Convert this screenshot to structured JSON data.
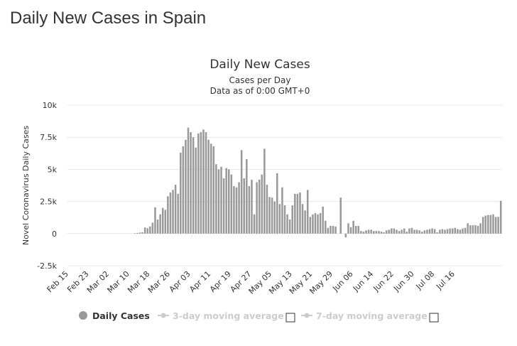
{
  "page": {
    "title": "Daily New Cases in Spain"
  },
  "chart_data": {
    "type": "bar",
    "title": "Daily New Cases",
    "subtitle": "Cases per Day",
    "subtitle2": "Data as of 0:00 GMT+0",
    "ylabel": "Novel Coronavirus Daily Cases",
    "xlabel": "",
    "ylim": [
      -2500,
      10000
    ],
    "yticks": [
      -2500,
      0,
      2500,
      5000,
      7500,
      10000
    ],
    "ytick_labels": [
      "-2.5k",
      "0",
      "2.5k",
      "5k",
      "7.5k",
      "10k"
    ],
    "x_start": "Feb 15",
    "xtick_labels": [
      "Feb 15",
      "Feb 23",
      "Mar 02",
      "Mar 10",
      "Mar 18",
      "Mar 26",
      "Apr 03",
      "Apr 11",
      "Apr 19",
      "Apr 27",
      "May 05",
      "May 13",
      "May 21",
      "May 29",
      "Jun 06",
      "Jun 14",
      "Jun 22",
      "Jun 30",
      "Jul 08",
      "Jul 16"
    ],
    "grid": true,
    "legend_position": "bottom",
    "color": "#999999",
    "series": [
      {
        "name": "Daily Cases",
        "values": [
          0,
          0,
          0,
          0,
          0,
          0,
          0,
          0,
          0,
          0,
          0,
          0,
          0,
          0,
          0,
          0,
          0,
          0,
          0,
          0,
          0,
          0,
          0,
          0,
          0,
          0,
          30,
          50,
          80,
          100,
          480,
          420,
          550,
          850,
          2050,
          1100,
          1500,
          2000,
          1850,
          2900,
          3200,
          3400,
          3800,
          3100,
          6300,
          6800,
          7300,
          8250,
          7900,
          7500,
          6700,
          7800,
          7900,
          8100,
          7900,
          7300,
          7000,
          6800,
          5400,
          5000,
          5200,
          4300,
          5100,
          5000,
          4600,
          3700,
          3600,
          4000,
          6500,
          4300,
          5800,
          3700,
          4200,
          1500,
          4000,
          4200,
          4600,
          6600,
          3800,
          2850,
          2800,
          2500,
          4700,
          2300,
          3600,
          2200,
          1500,
          1100,
          2200,
          3100,
          3100,
          3200,
          2300,
          1800,
          3400,
          1300,
          1500,
          1600,
          1500,
          1600,
          2100,
          1000,
          450,
          600,
          600,
          550,
          0,
          2800,
          0,
          -300,
          800,
          500,
          1000,
          600,
          600,
          200,
          150,
          250,
          300,
          300,
          200,
          200,
          200,
          150,
          100,
          250,
          300,
          400,
          400,
          300,
          200,
          300,
          400,
          150,
          400,
          450,
          300,
          300,
          250,
          150,
          250,
          300,
          350,
          400,
          350,
          100,
          300,
          350,
          300,
          350,
          400,
          400,
          450,
          350,
          300,
          400,
          450,
          800,
          650,
          650,
          650,
          600,
          800,
          1300,
          1400,
          1450,
          1450,
          1500,
          1300,
          1300,
          2550
        ]
      }
    ]
  },
  "legend": {
    "items": [
      {
        "label": "Daily Cases",
        "active": true,
        "icon": "circle-icon"
      },
      {
        "label": "3-day moving average",
        "active": false,
        "icon": "line-marker-icon"
      },
      {
        "label": "7-day moving average",
        "active": false,
        "icon": "line-marker-icon"
      }
    ]
  },
  "colors": {
    "bar": "#999999",
    "grid": "#e6e6e6",
    "text": "#333333",
    "legend_inactive": "#cccccc"
  }
}
